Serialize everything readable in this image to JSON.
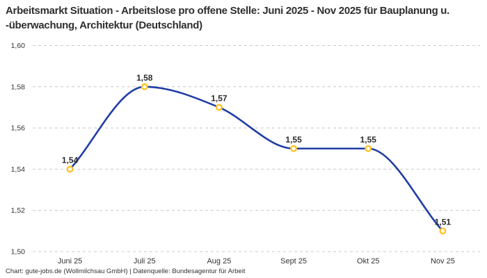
{
  "footer": {
    "credit": "Chart: gute-jobs.de (Wollmilchsau GmbH) | Datenquelle: Bundesagentur für Arbeit"
  },
  "chart_data": {
    "type": "line",
    "title": "Arbeitsmarkt Situation - Arbeitslose pro offene Stelle: Juni 2025 - Nov 2025 für Bauplanung u. -überwachung, Architektur (Deutschland)",
    "categories": [
      "Juni 25",
      "Juli 25",
      "Aug 25",
      "Sept 25",
      "Okt 25",
      "Nov 25"
    ],
    "values": [
      1.54,
      1.58,
      1.57,
      1.55,
      1.55,
      1.51
    ],
    "point_labels": [
      "1,54",
      "1,58",
      "1,57",
      "1,55",
      "1,55",
      "1,51"
    ],
    "xlabel": "",
    "ylabel": "",
    "ylim": [
      1.5,
      1.6
    ],
    "ytick_values": [
      1.6,
      1.58,
      1.56,
      1.54,
      1.52,
      1.5
    ],
    "ytick_labels": [
      "1,60",
      "1,58",
      "1,56",
      "1,54",
      "1,52",
      "1,50"
    ],
    "grid": "horizontal-dashed",
    "legend": "none",
    "interpolation": "monotone-cubic",
    "colors": {
      "line": "#1f3ca6",
      "marker_stroke": "#ffc325",
      "marker_fill": "#ffffff",
      "grid": "#c8c8c8",
      "tick_text": "#333333",
      "point_label_text": "#2b2b2b",
      "title_text": "#2e2e2e",
      "background": "#ffffff"
    }
  }
}
